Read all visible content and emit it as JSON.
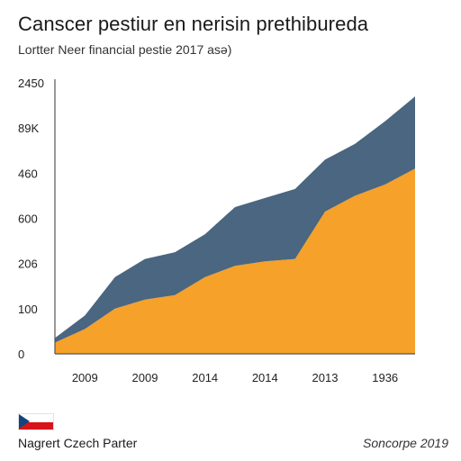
{
  "header": {
    "title": "Canscer pestiur en nerisin prethibureda",
    "subtitle": "Lortter Neer financial pestie 2017 asə)"
  },
  "footer": {
    "source_left": "Nagrert Czech Parter",
    "source_right": "Soncorpe 2019"
  },
  "flag": {
    "icon": "czech-flag-icon",
    "white": "#ffffff",
    "red": "#d7141a",
    "blue": "#11457e"
  },
  "chart_data": {
    "type": "area",
    "stacked": true,
    "title": "Canscer pestiur en nerisin prethibureda",
    "subtitle": "Lortter Neer financial pestie 2017 asə)",
    "xlabel": "",
    "ylabel": "",
    "y_tick_labels": [
      "0",
      "100",
      "206",
      "600",
      "460",
      "89K",
      "2450"
    ],
    "x_tick_labels": [
      "2009",
      "2009",
      "2014",
      "2014",
      "2013",
      "1936"
    ],
    "x": [
      0,
      0.5,
      1,
      1.5,
      2,
      2.5,
      3,
      3.5,
      4,
      4.5,
      5,
      5.5,
      6
    ],
    "series": [
      {
        "values": [
          0.25,
          0.55,
          1.0,
          1.2,
          1.3,
          1.7,
          1.95,
          2.05,
          2.1,
          3.15,
          3.5,
          3.75,
          4.1
        ],
        "color": "#f5a12a"
      },
      {
        "values": [
          0.1,
          0.3,
          0.7,
          0.9,
          0.95,
          0.95,
          1.3,
          1.4,
          1.55,
          1.15,
          1.15,
          1.4,
          1.6
        ],
        "color": "#4a6680"
      }
    ],
    "ylim": [
      0,
      6
    ],
    "xlim": [
      0,
      6
    ],
    "grid": false,
    "legend": "none"
  }
}
